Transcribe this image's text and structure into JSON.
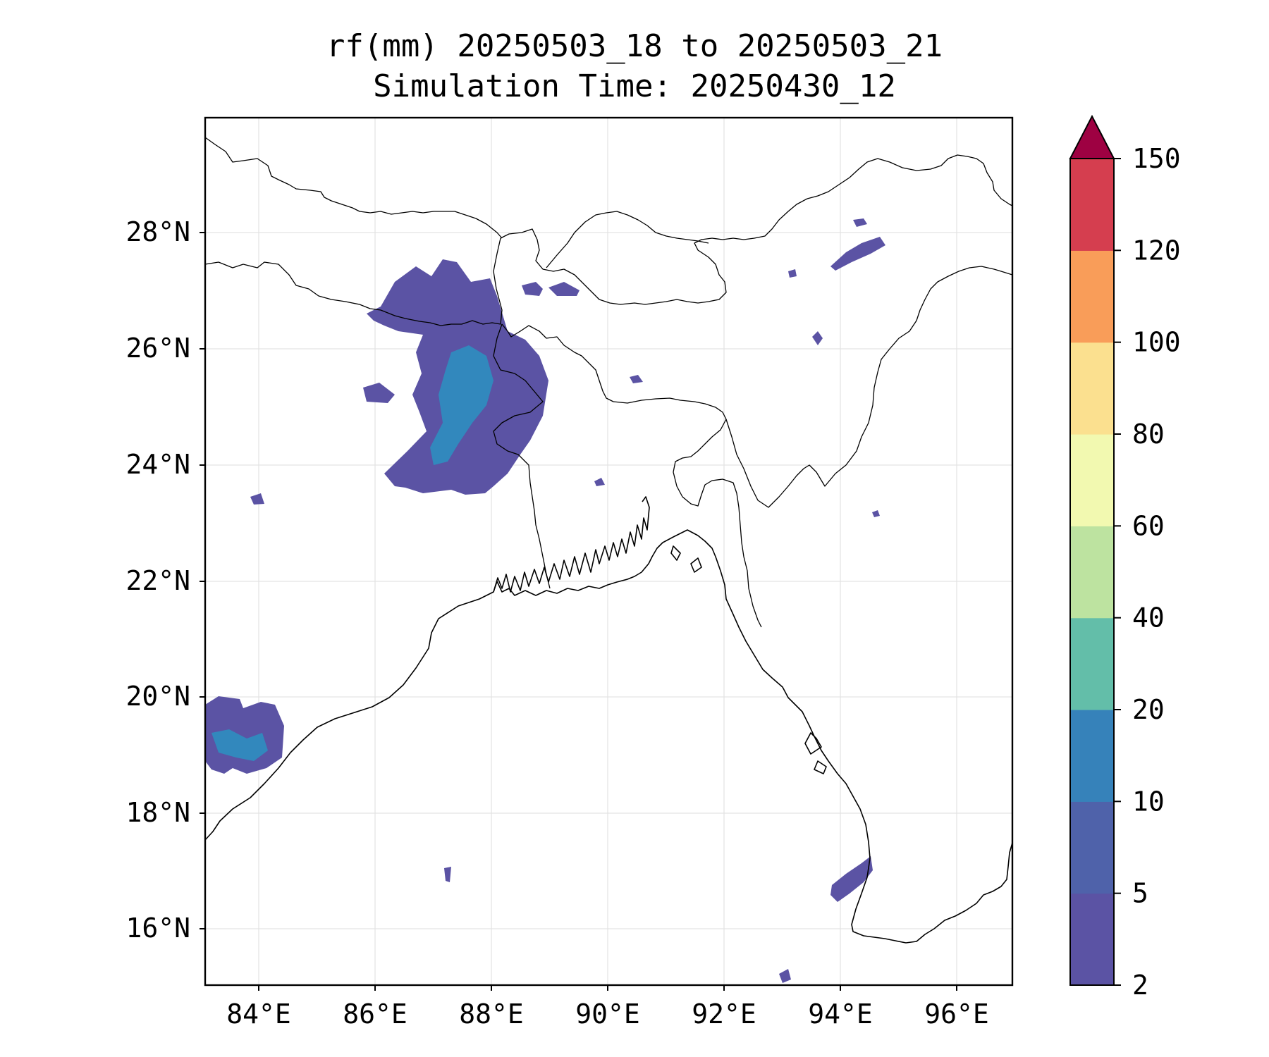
{
  "title": {
    "line1": "rf(mm) 20250503_18 to 20250503_21",
    "line2": "Simulation Time: 20250430_12"
  },
  "map": {
    "lon_range": [
      83.1,
      97.0
    ],
    "lat_range": [
      15.0,
      30.0
    ],
    "lon_ticks": [
      "84°E",
      "86°E",
      "88°E",
      "90°E",
      "92°E",
      "94°E",
      "96°E"
    ],
    "lat_ticks": [
      "28°N",
      "26°N",
      "24°N",
      "22°N",
      "20°N",
      "18°N",
      "16°N"
    ],
    "gridlines": true,
    "features": [
      "coastline",
      "country-borders"
    ],
    "variable": "rainfall accumulation (mm)"
  },
  "colorbar": {
    "extend": "max",
    "levels": [
      "2",
      "5",
      "10",
      "20",
      "40",
      "60",
      "80",
      "100",
      "120",
      "150"
    ],
    "colors": [
      "#5b53a4",
      "#4f62aa",
      "#3682ba",
      "#63bea9",
      "#bde3a0",
      "#f2f9b0",
      "#fbe08f",
      "#f99d59",
      "#d53e4f",
      "#9e0142"
    ]
  }
}
